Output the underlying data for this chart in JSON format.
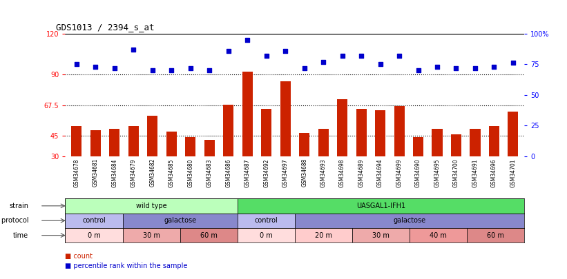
{
  "title": "GDS1013 / 2394_s_at",
  "samples": [
    "GSM34678",
    "GSM34681",
    "GSM34684",
    "GSM34679",
    "GSM34682",
    "GSM34685",
    "GSM34680",
    "GSM34683",
    "GSM34686",
    "GSM34687",
    "GSM34692",
    "GSM34697",
    "GSM34688",
    "GSM34693",
    "GSM34698",
    "GSM34689",
    "GSM34694",
    "GSM34699",
    "GSM34690",
    "GSM34695",
    "GSM34700",
    "GSM34691",
    "GSM34696",
    "GSM34701"
  ],
  "bar_values": [
    52,
    49,
    50,
    52,
    60,
    48,
    44,
    42,
    68,
    92,
    65,
    85,
    47,
    50,
    72,
    65,
    64,
    67,
    44,
    50,
    46,
    50,
    52,
    63
  ],
  "dot_values": [
    75,
    73,
    72,
    87,
    70,
    70,
    72,
    70,
    86,
    95,
    82,
    86,
    72,
    77,
    82,
    82,
    75,
    82,
    70,
    73,
    72,
    72,
    73,
    76
  ],
  "ylim_left": [
    30,
    120
  ],
  "ylim_right": [
    0,
    100
  ],
  "yticks_left": [
    30,
    45,
    67.5,
    90,
    120
  ],
  "ytick_labels_left": [
    "30",
    "45",
    "67.5",
    "90",
    "120"
  ],
  "yticks_right": [
    0,
    25,
    50,
    75,
    100
  ],
  "ytick_labels_right": [
    "0",
    "25",
    "50",
    "75",
    "100%"
  ],
  "hlines": [
    45,
    67.5,
    90
  ],
  "bar_color": "#cc2200",
  "dot_color": "#0000cc",
  "strain_groups": [
    {
      "label": "wild type",
      "start": 0,
      "end": 9,
      "color": "#bbffbb"
    },
    {
      "label": "UASGAL1-IFH1",
      "start": 9,
      "end": 24,
      "color": "#55dd66"
    }
  ],
  "growth_groups": [
    {
      "label": "control",
      "start": 0,
      "end": 3,
      "color": "#bbbbee"
    },
    {
      "label": "galactose",
      "start": 3,
      "end": 9,
      "color": "#8888cc"
    },
    {
      "label": "control",
      "start": 9,
      "end": 12,
      "color": "#bbbbee"
    },
    {
      "label": "galactose",
      "start": 12,
      "end": 24,
      "color": "#8888cc"
    }
  ],
  "time_groups": [
    {
      "label": "0 m",
      "start": 0,
      "end": 3,
      "color": "#ffdddd"
    },
    {
      "label": "30 m",
      "start": 3,
      "end": 6,
      "color": "#eeaaaa"
    },
    {
      "label": "60 m",
      "start": 6,
      "end": 9,
      "color": "#dd8888"
    },
    {
      "label": "0 m",
      "start": 9,
      "end": 12,
      "color": "#ffdddd"
    },
    {
      "label": "20 m",
      "start": 12,
      "end": 15,
      "color": "#ffcccc"
    },
    {
      "label": "30 m",
      "start": 15,
      "end": 18,
      "color": "#eeaaaa"
    },
    {
      "label": "40 m",
      "start": 18,
      "end": 21,
      "color": "#ee9999"
    },
    {
      "label": "60 m",
      "start": 21,
      "end": 24,
      "color": "#dd8888"
    }
  ],
  "legend_items": [
    {
      "label": "count",
      "color": "#cc2200"
    },
    {
      "label": "percentile rank within the sample",
      "color": "#0000cc"
    }
  ],
  "row_labels": [
    "strain",
    "growth protocol",
    "time"
  ]
}
